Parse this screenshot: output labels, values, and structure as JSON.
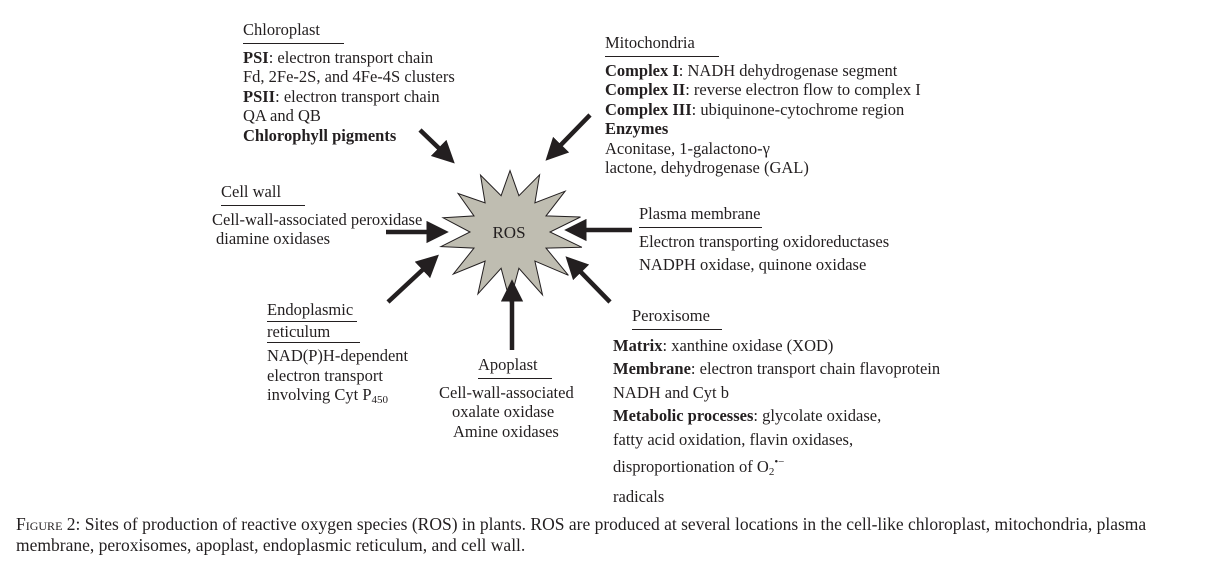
{
  "center": {
    "label": "ROS"
  },
  "chloroplast": {
    "heading": "Chloroplast",
    "psi_label": "PSI",
    "psi_text": ": electron transport chain",
    "fd_line": "Fd, 2Fe-2S, and 4Fe-4S clusters",
    "psii_label": "PSII",
    "psii_text": ": electron transport chain",
    "qa_line": "QA and QB",
    "pigments": "Chlorophyll pigments"
  },
  "mitochondria": {
    "heading": "Mitochondria",
    "c1_label": "Complex I",
    "c1_text": ": NADH dehydrogenase segment",
    "c2_label": "Complex II",
    "c2_text": ": reverse electron flow to complex I",
    "c3_label": "Complex III",
    "c3_text": ": ubiquinone-cytochrome region",
    "enzymes_label": "Enzymes",
    "enz_line1": "Aconitase, 1-galactono-γ",
    "enz_line2": "lactone, dehydrogenase (GAL)"
  },
  "cell_wall": {
    "heading": "Cell wall",
    "line1": "Cell-wall-associated peroxidase",
    "line2": "diamine oxidases"
  },
  "plasma_membrane": {
    "heading": "Plasma membrane",
    "line1": "Electron transporting oxidoreductases",
    "line2": "NADPH oxidase, quinone oxidase"
  },
  "er": {
    "heading_line1": "Endoplasmic",
    "heading_line2": "reticulum",
    "line1": "NAD(P)H-dependent",
    "line2": "electron transport",
    "line3_text": "involving Cyt P",
    "line3_sub": "450"
  },
  "apoplast": {
    "heading": "Apoplast",
    "line1": "Cell-wall-associated",
    "line2": "oxalate oxidase",
    "line3": "Amine oxidases"
  },
  "peroxisome": {
    "heading": "Peroxisome",
    "matrix_label": "Matrix",
    "matrix_text": ": xanthine oxidase (XOD)",
    "membrane_label": "Membrane",
    "membrane_text": ": electron transport chain flavoprotein",
    "nadh_line": "NADH and Cyt b",
    "metabolic_label": "Metabolic processes",
    "metabolic_text": ": glycolate oxidase,",
    "fatty_line": "fatty acid oxidation, flavin oxidases,",
    "dispro_text": "disproportionation of O",
    "dispro_sub": "2",
    "dispro_sup": "•−",
    "radicals_line": "radicals"
  },
  "caption": {
    "label": "Figure 2",
    "text": ": Sites of production of reactive oxygen species (ROS) in plants. ROS are produced at several locations in the cell-like chloroplast, mitochondria, plasma membrane, peroxisomes, apoplast, endoplasmic reticulum, and cell wall."
  },
  "colors": {
    "star_fill": "#bfbdb1",
    "star_stroke": "#231f20",
    "arrow": "#231f20"
  }
}
